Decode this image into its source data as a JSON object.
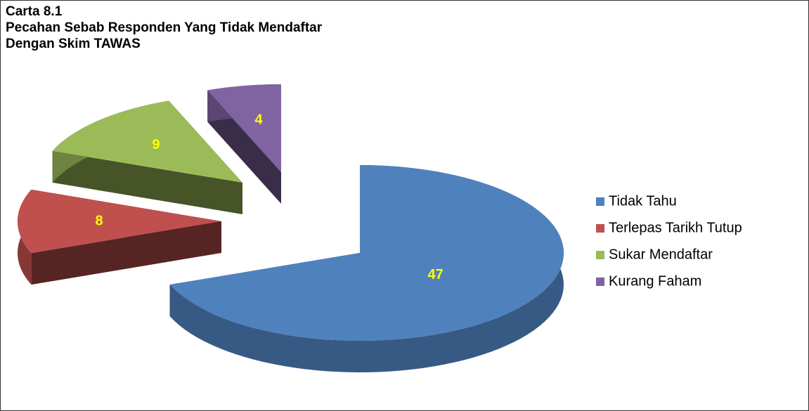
{
  "chart_data": {
    "type": "pie",
    "title": [
      "Carta 8.1",
      "Pecahan Sebab Responden Yang Tidak Mendaftar",
      "Dengan Skim TAWAS"
    ],
    "categories": [
      "Tidak Tahu",
      "Terlepas Tarikh Tutup",
      "Sukar Mendaftar",
      "Kurang Faham"
    ],
    "values": [
      47,
      8,
      9,
      4
    ],
    "colors": [
      "#4f81bd",
      "#c0504d",
      "#9bbb59",
      "#8064a2"
    ],
    "legend": "right"
  }
}
